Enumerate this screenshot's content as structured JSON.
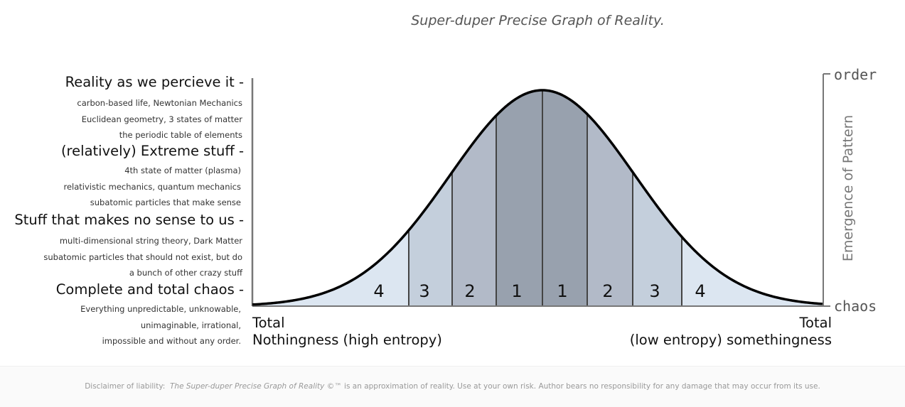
{
  "title": "Super-duper Precise Graph of Reality.",
  "levels": [
    {
      "label": "Reality as we percieve it -",
      "details": [
        "carbon-based life, Newtonian Mechanics",
        "Euclidean geometry, 3 states of matter",
        "the periodic table of elements"
      ]
    },
    {
      "label": "(relatively) Extreme stuff -",
      "details": [
        "4th state of matter (plasma)",
        "relativistic mechanics, quantum mechanics",
        "subatomic particles that make sense"
      ]
    },
    {
      "label": "Stuff that makes no sense to us -",
      "details": [
        "multi-dimensional string theory, Dark Matter",
        "subatomic particles that should not exist, but do",
        "a bunch of other crazy stuff"
      ]
    },
    {
      "label": "Complete and total chaos -",
      "details": [
        "Everything unpredictable, unknowable,",
        "unimaginable, irrational,",
        "impossible and without any order."
      ]
    }
  ],
  "bottom_left": [
    "Total",
    "Nothingness (high entropy)"
  ],
  "bottom_right": [
    "Total",
    "(low entropy) somethingness"
  ],
  "right_axis": {
    "top": "order",
    "bottom": "chaos",
    "label": "Emergence of Pattern"
  },
  "bands": [
    "4",
    "3",
    "2",
    "1",
    "1",
    "2",
    "3",
    "4"
  ],
  "band_colors": [
    "#dce6f1",
    "#c4cfdc",
    "#b2bac8",
    "#98a1ae",
    "#98a1ae",
    "#b2bac8",
    "#c4cfdc",
    "#dce6f1"
  ],
  "disclaimer": {
    "prefix": "Disclaimer of liability:",
    "name": "The Super-duper Precise Graph of Reality",
    "suffix": "©™ is an approximation of reality.  Use at your own risk. Author bears no responsibility for any damage that may occur from its use."
  }
}
